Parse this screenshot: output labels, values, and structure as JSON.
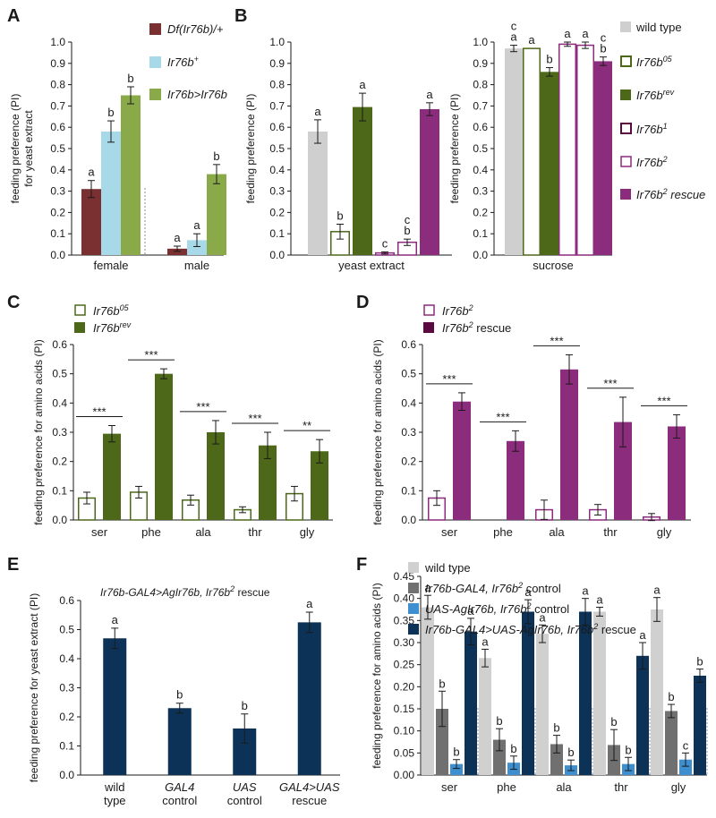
{
  "colors": {
    "A_df": "#7a3030",
    "A_ir76bplus": "#a8d9e8",
    "A_rescue": "#8aaa4a",
    "wildtype": "#cfcfcf",
    "olive": "#4d6818",
    "purple": "#8c2c7c",
    "darkpurple": "#5a0a40",
    "navy": "#0c3258",
    "F_wt": "#d0d0d0",
    "F_gal4": "#707070",
    "F_uas": "#3d8fd0",
    "F_rescue": "#0c3258",
    "axis": "#1a1a1a"
  },
  "chart_data": [
    {
      "id": "A",
      "panel_label": "A",
      "type": "bar",
      "ylabel_lines": [
        "feeding preference (PI)",
        "for yeast extract"
      ],
      "ylim": [
        0,
        1.0
      ],
      "yticks": [
        "0.0",
        "0.1",
        "0.2",
        "0.3",
        "0.4",
        "0.5",
        "0.6",
        "0.7",
        "0.8",
        "0.9",
        "1.0"
      ],
      "categories": [
        "female",
        "male"
      ],
      "series": [
        {
          "name": "Df(Ir76b)/+",
          "color_key": "A_df",
          "fill": true,
          "values": [
            0.31,
            0.03
          ],
          "errors": [
            0.04,
            0.012
          ],
          "letters": [
            "a",
            "a"
          ]
        },
        {
          "name": "Ir76b+",
          "color_key": "A_ir76bplus",
          "fill": true,
          "values": [
            0.58,
            0.07
          ],
          "errors": [
            0.05,
            0.03
          ],
          "letters": [
            "b",
            "a"
          ]
        },
        {
          "name": "Ir76b>Ir76b",
          "color_key": "A_rescue",
          "fill": true,
          "values": [
            0.75,
            0.38
          ],
          "errors": [
            0.04,
            0.045
          ],
          "letters": [
            "b",
            "b"
          ]
        }
      ]
    },
    {
      "id": "B1",
      "panel_label": "B",
      "type": "bar",
      "ylabel_lines": [
        "feeding preference (PI)"
      ],
      "ylim": [
        0,
        1.0
      ],
      "yticks": [
        "0.0",
        "0.1",
        "0.2",
        "0.3",
        "0.4",
        "0.5",
        "0.6",
        "0.7",
        "0.8",
        "0.9",
        "1.0"
      ],
      "categories": [
        "yeast extract"
      ],
      "bars": [
        {
          "value": 0.58,
          "error": 0.055,
          "letter": "a",
          "color_key": "wildtype",
          "fill": true
        },
        {
          "value": 0.11,
          "error": 0.035,
          "letter": "b",
          "color_key": "olive",
          "fill": false
        },
        {
          "value": 0.695,
          "error": 0.065,
          "letter": "a",
          "color_key": "olive",
          "fill": true
        },
        {
          "value": 0.01,
          "error": 0.005,
          "letter": "c",
          "color_key": "purple",
          "fill": false
        },
        {
          "value": 0.06,
          "error": 0.015,
          "letter": "b",
          "letter2": "c",
          "color_key": "purple",
          "fill": false
        },
        {
          "value": 0.685,
          "error": 0.03,
          "letter": "a",
          "color_key": "purple",
          "fill": true
        }
      ]
    },
    {
      "id": "B2",
      "panel_label": "",
      "type": "bar",
      "ylabel_lines": [
        "feeding preference (PI)"
      ],
      "ylim": [
        0,
        1.0
      ],
      "yticks": [
        "0.0",
        "0.1",
        "0.2",
        "0.3",
        "0.4",
        "0.5",
        "0.6",
        "0.7",
        "0.8",
        "0.9",
        "1.0"
      ],
      "categories": [
        "sucrose"
      ],
      "bars": [
        {
          "value": 0.97,
          "error": 0.015,
          "letter": "a",
          "letter2": "c",
          "color_key": "wildtype",
          "fill": true
        },
        {
          "value": 0.97,
          "error": 0.0,
          "letter": "a",
          "color_key": "olive",
          "fill": false
        },
        {
          "value": 0.86,
          "error": 0.02,
          "letter": "b",
          "color_key": "olive",
          "fill": true
        },
        {
          "value": 0.99,
          "error": 0.01,
          "letter": "a",
          "color_key": "purple",
          "fill": false
        },
        {
          "value": 0.985,
          "error": 0.015,
          "letter": "a",
          "color_key": "purple",
          "fill": false
        },
        {
          "value": 0.91,
          "error": 0.02,
          "letter": "b",
          "letter2": "c",
          "color_key": "purple",
          "fill": true
        }
      ]
    },
    {
      "id": "C",
      "panel_label": "C",
      "type": "bar",
      "ylabel_lines": [
        "feeding preference for amino acids (PI)"
      ],
      "ylim": [
        0,
        0.6
      ],
      "yticks": [
        "0.0",
        "0.1",
        "0.2",
        "0.3",
        "0.4",
        "0.5",
        "0.6"
      ],
      "categories": [
        "ser",
        "phe",
        "ala",
        "thr",
        "gly"
      ],
      "series": [
        {
          "name": "Ir76b05",
          "color_key": "olive",
          "fill": false,
          "values": [
            0.075,
            0.095,
            0.068,
            0.035,
            0.09
          ],
          "errors": [
            0.02,
            0.02,
            0.017,
            0.01,
            0.025
          ]
        },
        {
          "name": "Ir76brev",
          "color_key": "olive",
          "fill": true,
          "values": [
            0.295,
            0.5,
            0.3,
            0.255,
            0.235
          ],
          "errors": [
            0.028,
            0.017,
            0.04,
            0.045,
            0.04
          ]
        }
      ],
      "significance": [
        "***",
        "***",
        "***",
        "***",
        "**"
      ]
    },
    {
      "id": "D",
      "panel_label": "D",
      "type": "bar",
      "ylabel_lines": [
        "feeding preference for amino acids (PI)"
      ],
      "ylim": [
        0,
        0.6
      ],
      "yticks": [
        "0.0",
        "0.1",
        "0.2",
        "0.3",
        "0.4",
        "0.5",
        "0.6"
      ],
      "categories": [
        "ser",
        "phe",
        "ala",
        "thr",
        "gly"
      ],
      "series": [
        {
          "name": "Ir76b2",
          "color_key": "purple",
          "fill": false,
          "values": [
            0.075,
            0.0,
            0.035,
            0.035,
            0.01
          ],
          "errors": [
            0.025,
            0.0,
            0.033,
            0.018,
            0.012
          ]
        },
        {
          "name": "Ir76b2 rescue",
          "color_key": "purple",
          "fill": true,
          "values": [
            0.405,
            0.27,
            0.515,
            0.335,
            0.32
          ],
          "errors": [
            0.03,
            0.035,
            0.05,
            0.085,
            0.04
          ]
        }
      ],
      "significance": [
        "***",
        "***",
        "***",
        "***",
        "***"
      ]
    },
    {
      "id": "E",
      "panel_label": "E",
      "type": "bar",
      "ylabel_lines": [
        "feeding preference for yeast extract (PI)"
      ],
      "ylim": [
        0,
        0.6
      ],
      "yticks": [
        "0.0",
        "0.1",
        "0.2",
        "0.3",
        "0.4",
        "0.5",
        "0.6"
      ],
      "categories": [
        [
          "wild",
          "type"
        ],
        [
          "GAL4",
          "control"
        ],
        [
          "UAS",
          "control"
        ],
        [
          "GAL4>UAS",
          "rescue"
        ]
      ],
      "category_italic_first": [
        false,
        true,
        true,
        true
      ],
      "values": [
        0.47,
        0.23,
        0.16,
        0.525
      ],
      "errors": [
        0.035,
        0.017,
        0.05,
        0.035
      ],
      "letters": [
        "a",
        "b",
        "b",
        "a"
      ],
      "color_key": "navy"
    },
    {
      "id": "F",
      "panel_label": "F",
      "type": "bar",
      "ylabel_lines": [
        "feeding preference for amino acids (PI)"
      ],
      "ylim": [
        0,
        0.45
      ],
      "yticks": [
        "0.00",
        "0.05",
        "0.10",
        "0.15",
        "0.20",
        "0.25",
        "0.30",
        "0.35",
        "0.40",
        "0.45"
      ],
      "categories": [
        "ser",
        "phe",
        "ala",
        "thr",
        "gly"
      ],
      "series": [
        {
          "name": "wild type",
          "color_key": "F_wt",
          "values": [
            0.38,
            0.265,
            0.32,
            0.37,
            0.375
          ],
          "errors": [
            0.027,
            0.02,
            0.02,
            0.01,
            0.027
          ],
          "letters": [
            "a",
            "a",
            "a",
            "a",
            "a"
          ]
        },
        {
          "name": "Ir76b-GAL4, Ir76b2 control",
          "color_key": "F_gal4",
          "values": [
            0.15,
            0.08,
            0.07,
            0.068,
            0.145
          ],
          "errors": [
            0.04,
            0.025,
            0.02,
            0.035,
            0.015
          ],
          "letters": [
            "b",
            "b",
            "b",
            "b",
            "b"
          ]
        },
        {
          "name": "UAS-AgIr76b, Ir76b2 control",
          "color_key": "F_uas",
          "values": [
            0.025,
            0.028,
            0.022,
            0.025,
            0.035
          ],
          "errors": [
            0.01,
            0.015,
            0.012,
            0.015,
            0.015
          ],
          "letters": [
            "b",
            "b",
            "b",
            "b",
            "c"
          ]
        },
        {
          "name": "Ir76b-GAL4>UAS-AgIr76b, Ir76b2 rescue",
          "color_key": "F_rescue",
          "values": [
            0.325,
            0.37,
            0.37,
            0.27,
            0.225
          ],
          "errors": [
            0.03,
            0.027,
            0.03,
            0.03,
            0.015
          ],
          "letters": [
            "a",
            "a",
            "a",
            "a",
            "b"
          ]
        }
      ]
    }
  ],
  "legends": {
    "A": [
      {
        "base": "Df(Ir76b)/+",
        "sup": ""
      },
      {
        "base": "Ir76b",
        "sup": "+"
      },
      {
        "base": "Ir76b>Ir76b",
        "sup": ""
      }
    ],
    "B": [
      {
        "base": "wild type",
        "sup": "",
        "italic": false
      },
      {
        "base": "Ir76b",
        "sup": "05",
        "italic": true
      },
      {
        "base": "Ir76b",
        "sup": "rev",
        "italic": true
      },
      {
        "base": "Ir76b",
        "sup": "1",
        "italic": true
      },
      {
        "base": "Ir76b",
        "sup": "2",
        "italic": true
      },
      {
        "base": "Ir76b",
        "sup": "2",
        "suffix": " rescue",
        "italic": true
      }
    ],
    "C": [
      {
        "base": "Ir76b",
        "sup": "05"
      },
      {
        "base": "Ir76b",
        "sup": "rev"
      }
    ],
    "D": [
      {
        "base": "Ir76b",
        "sup": "2",
        "suffix": ""
      },
      {
        "base": "Ir76b",
        "sup": "2",
        "suffix": " rescue"
      }
    ],
    "E_title": {
      "part1": "Ir76b-GAL4>AgIr76b, Ir76b",
      "sup": "2",
      "part2": " rescue"
    },
    "F": [
      {
        "base": "wild type",
        "sup": "",
        "suffix": ""
      },
      {
        "base": "Ir76b-GAL4, Ir76b",
        "sup": "2",
        "suffix": " control"
      },
      {
        "base": "UAS-AgIr76b, Ir76b",
        "sup": "2",
        "suffix": " control"
      },
      {
        "base": "Ir76b-GAL4>UAS-AgIr76b,  Ir76b",
        "sup": "2",
        "suffix": " rescue"
      }
    ]
  }
}
